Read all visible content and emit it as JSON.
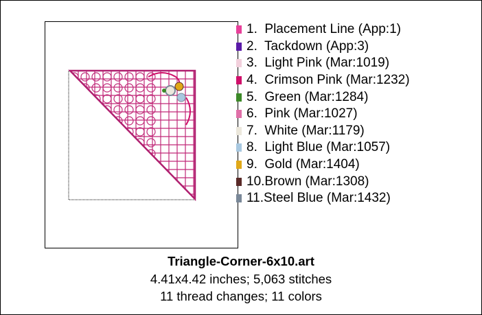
{
  "colors": [
    {
      "label": "1.  Placement Line (App:1)",
      "color": "#e8409a"
    },
    {
      "label": "2.  Tackdown (App:3)",
      "color": "#5a1aa8"
    },
    {
      "label": "3.  Light Pink (Mar:1019)",
      "color": "#f2d0dc"
    },
    {
      "label": "4.  Crimson Pink (Mar:1232)",
      "color": "#d0106a"
    },
    {
      "label": "5.  Green (Mar:1284)",
      "color": "#3c8a28"
    },
    {
      "label": "6.  Pink (Mar:1027)",
      "color": "#e070a8"
    },
    {
      "label": "7.  White (Mar:1179)",
      "color": "#ece8dc"
    },
    {
      "label": "8.  Light Blue (Mar:1057)",
      "color": "#a8c8e0"
    },
    {
      "label": "9.  Gold (Mar:1404)",
      "color": "#e0a818"
    },
    {
      "label": "10.Brown (Mar:1308)",
      "color": "#5a2a28"
    },
    {
      "label": "11.Steel Blue (Mar:1432)",
      "color": "#7a8898"
    }
  ],
  "footer": {
    "title": "Triangle-Corner-6x10.art",
    "line1": "4.41x4.42 inches; 5,063 stitches",
    "line2": "11 thread changes; 11 colors"
  }
}
